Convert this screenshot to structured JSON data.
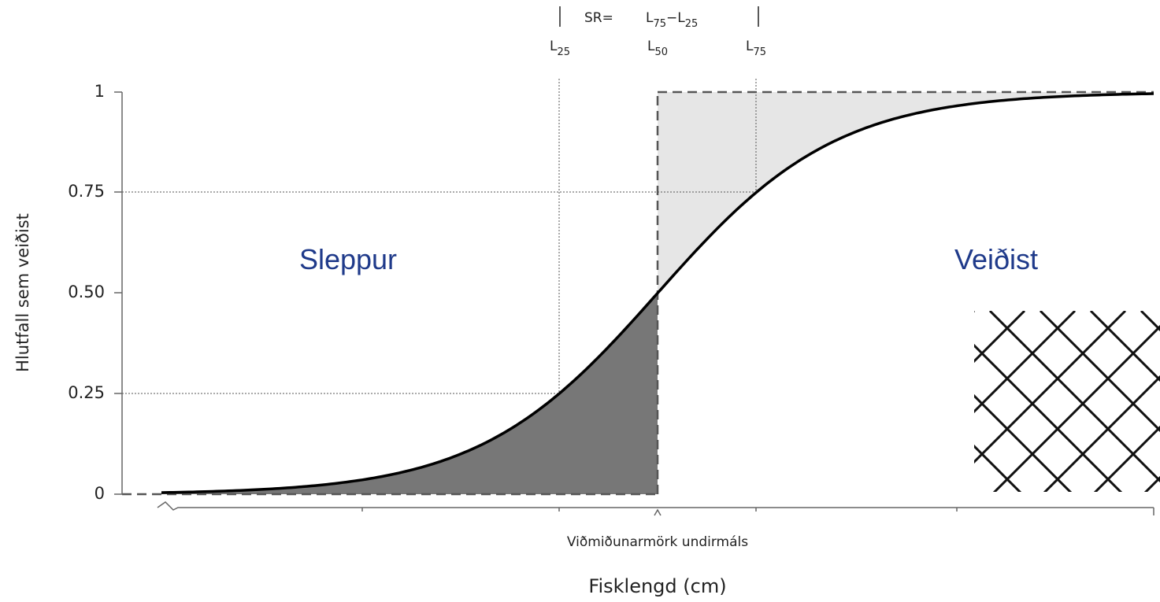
{
  "annotations": {
    "sr": "SR=",
    "formula": [
      {
        "text": "L",
        "sub": "75"
      },
      {
        "text": "−L",
        "sub": "25"
      }
    ],
    "markers": [
      {
        "text": "L",
        "sub": "25"
      },
      {
        "text": "L",
        "sub": "50"
      },
      {
        "text": "L",
        "sub": "75"
      }
    ]
  },
  "regions": [
    "Sleppur",
    "Veiðist"
  ],
  "threshold_label": "Viðmiðunarmörk undirmáls",
  "x_axis_title": "Fisklengd (cm)",
  "y_axis_title": "Hlutfall sem veiðist",
  "y_ticks": [
    "1",
    "0.75",
    "0.50",
    "0.25",
    "0"
  ]
}
